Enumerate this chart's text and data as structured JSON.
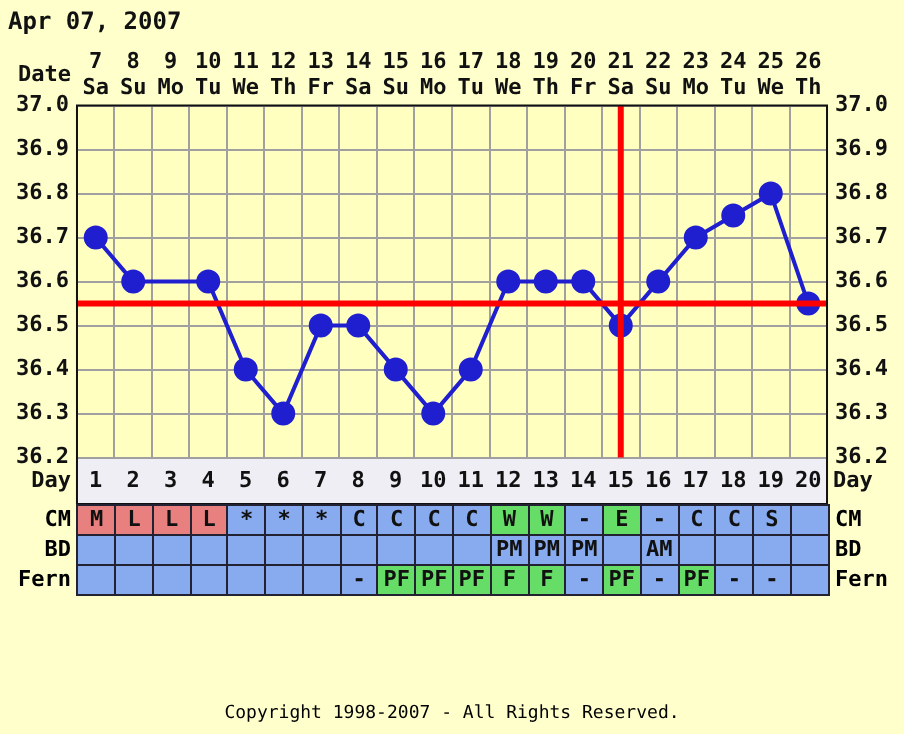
{
  "chart_data": [
    {
      "type": "line",
      "title": "Apr 07, 2007",
      "xlabel": "Day",
      "x2label": "Date",
      "x": [
        1,
        2,
        3,
        4,
        5,
        6,
        7,
        8,
        9,
        10,
        11,
        12,
        13,
        14,
        15,
        16,
        17,
        18,
        19,
        20
      ],
      "series": [
        {
          "color": "#1f1fd0",
          "values": [
            36.7,
            36.6,
            null,
            36.6,
            36.4,
            36.3,
            36.5,
            36.5,
            36.4,
            36.3,
            36.4,
            36.6,
            36.6,
            36.6,
            36.5,
            36.6,
            36.7,
            36.75,
            36.8,
            36.55
          ]
        }
      ],
      "xlim": [
        0.5,
        20.5
      ],
      "xticks": [
        1,
        2,
        3,
        4,
        5,
        6,
        7,
        8,
        9,
        10,
        11,
        12,
        13,
        14,
        15,
        16,
        17,
        18,
        19,
        20
      ],
      "x2lim": [
        "2007-04-06T12:00",
        "2007-04-26T12:00"
      ],
      "x2ticks": [
        {
          "value": "2007-04-07",
          "label": "7 Sa"
        },
        {
          "value": "2007-04-08",
          "label": "8 Su"
        },
        {
          "value": "2007-04-09",
          "label": "9 Mo"
        },
        {
          "value": "2007-04-10",
          "label": "10 Tu"
        },
        {
          "value": "2007-04-11",
          "label": "11 We"
        },
        {
          "value": "2007-04-12",
          "label": "12 Th"
        },
        {
          "value": "2007-04-13",
          "label": "13 Fr"
        },
        {
          "value": "2007-04-14",
          "label": "14 Sa"
        },
        {
          "value": "2007-04-15",
          "label": "15 Su"
        },
        {
          "value": "2007-04-16",
          "label": "16 Mo"
        },
        {
          "value": "2007-04-17",
          "label": "17 Tu"
        },
        {
          "value": "2007-04-18",
          "label": "18 We"
        },
        {
          "value": "2007-04-19",
          "label": "19 Th"
        },
        {
          "value": "2007-04-20",
          "label": "20 Fr"
        },
        {
          "value": "2007-04-21",
          "label": "21 Sa"
        },
        {
          "value": "2007-04-22",
          "label": "22 Su"
        },
        {
          "value": "2007-04-23",
          "label": "23 Mo"
        },
        {
          "value": "2007-04-24",
          "label": "24 Tu"
        },
        {
          "value": "2007-04-25",
          "label": "25 We"
        },
        {
          "value": "2007-04-26",
          "label": "26 Th"
        }
      ],
      "ylim": [
        36.2,
        37.0
      ],
      "yticks": [
        36.2,
        36.3,
        36.4,
        36.5,
        36.6,
        36.7,
        36.8,
        36.9,
        {
          "value": 37.0,
          "label": "37.0"
        }
      ],
      "y2lim": [
        36.2,
        37.0
      ],
      "y2ticks": [
        36.2,
        36.3,
        36.4,
        36.5,
        36.6,
        36.7,
        36.8,
        36.9,
        {
          "value": 37.0,
          "label": "37.0"
        }
      ],
      "ref_lines": [
        {
          "axis": "y",
          "value": 36.55,
          "color": "#ff0000"
        },
        {
          "axis": "x",
          "value": 15,
          "color": "#ff0000"
        }
      ],
      "grid": true,
      "marker": "circle",
      "annotations": [
        "Copyright 1998-2007 - All Rights Reserved."
      ]
    },
    {
      "type": "other",
      "y_categories": [
        "CM",
        "BD",
        "Fern"
      ],
      "y2_categories": [
        "CM",
        "BD",
        "Fern"
      ],
      "cell_labels": [
        [
          "M",
          "L",
          "L",
          "L",
          "*",
          "*",
          "*",
          "C",
          "C",
          "C",
          "C",
          "W",
          "W",
          "-",
          "E",
          "-",
          "C",
          "C",
          "S",
          null
        ],
        [
          null,
          null,
          null,
          null,
          null,
          null,
          null,
          null,
          null,
          null,
          null,
          "PM",
          "PM",
          "PM",
          null,
          "AM",
          null,
          null,
          null,
          null
        ],
        [
          null,
          null,
          null,
          null,
          null,
          null,
          null,
          "-",
          "PF",
          "PF",
          "PF",
          "F",
          "F",
          "-",
          "PF",
          "-",
          "PF",
          "-",
          "-",
          null
        ]
      ],
      "colors": [
        [
          "#e88080",
          "#e88080",
          "#e88080",
          "#e88080",
          "#88aaee",
          "#88aaee",
          "#88aaee",
          "#88aaee",
          "#88aaee",
          "#88aaee",
          "#88aaee",
          "#66dd66",
          "#66dd66",
          "#88aaee",
          "#66dd66",
          "#88aaee",
          "#88aaee",
          "#88aaee",
          "#88aaee",
          "#88aaee"
        ],
        [
          "#88aaee",
          "#88aaee",
          "#88aaee",
          "#88aaee",
          "#88aaee",
          "#88aaee",
          "#88aaee",
          "#88aaee",
          "#88aaee",
          "#88aaee",
          "#88aaee",
          "#88aaee",
          "#88aaee",
          "#88aaee",
          "#88aaee",
          "#88aaee",
          "#88aaee",
          "#88aaee",
          "#88aaee",
          "#88aaee"
        ],
        [
          "#88aaee",
          "#88aaee",
          "#88aaee",
          "#88aaee",
          "#88aaee",
          "#88aaee",
          "#88aaee",
          "#88aaee",
          "#66dd66",
          "#66dd66",
          "#66dd66",
          "#66dd66",
          "#66dd66",
          "#88aaee",
          "#66dd66",
          "#88aaee",
          "#66dd66",
          "#88aaee",
          "#88aaee",
          "#88aaee"
        ]
      ]
    }
  ]
}
